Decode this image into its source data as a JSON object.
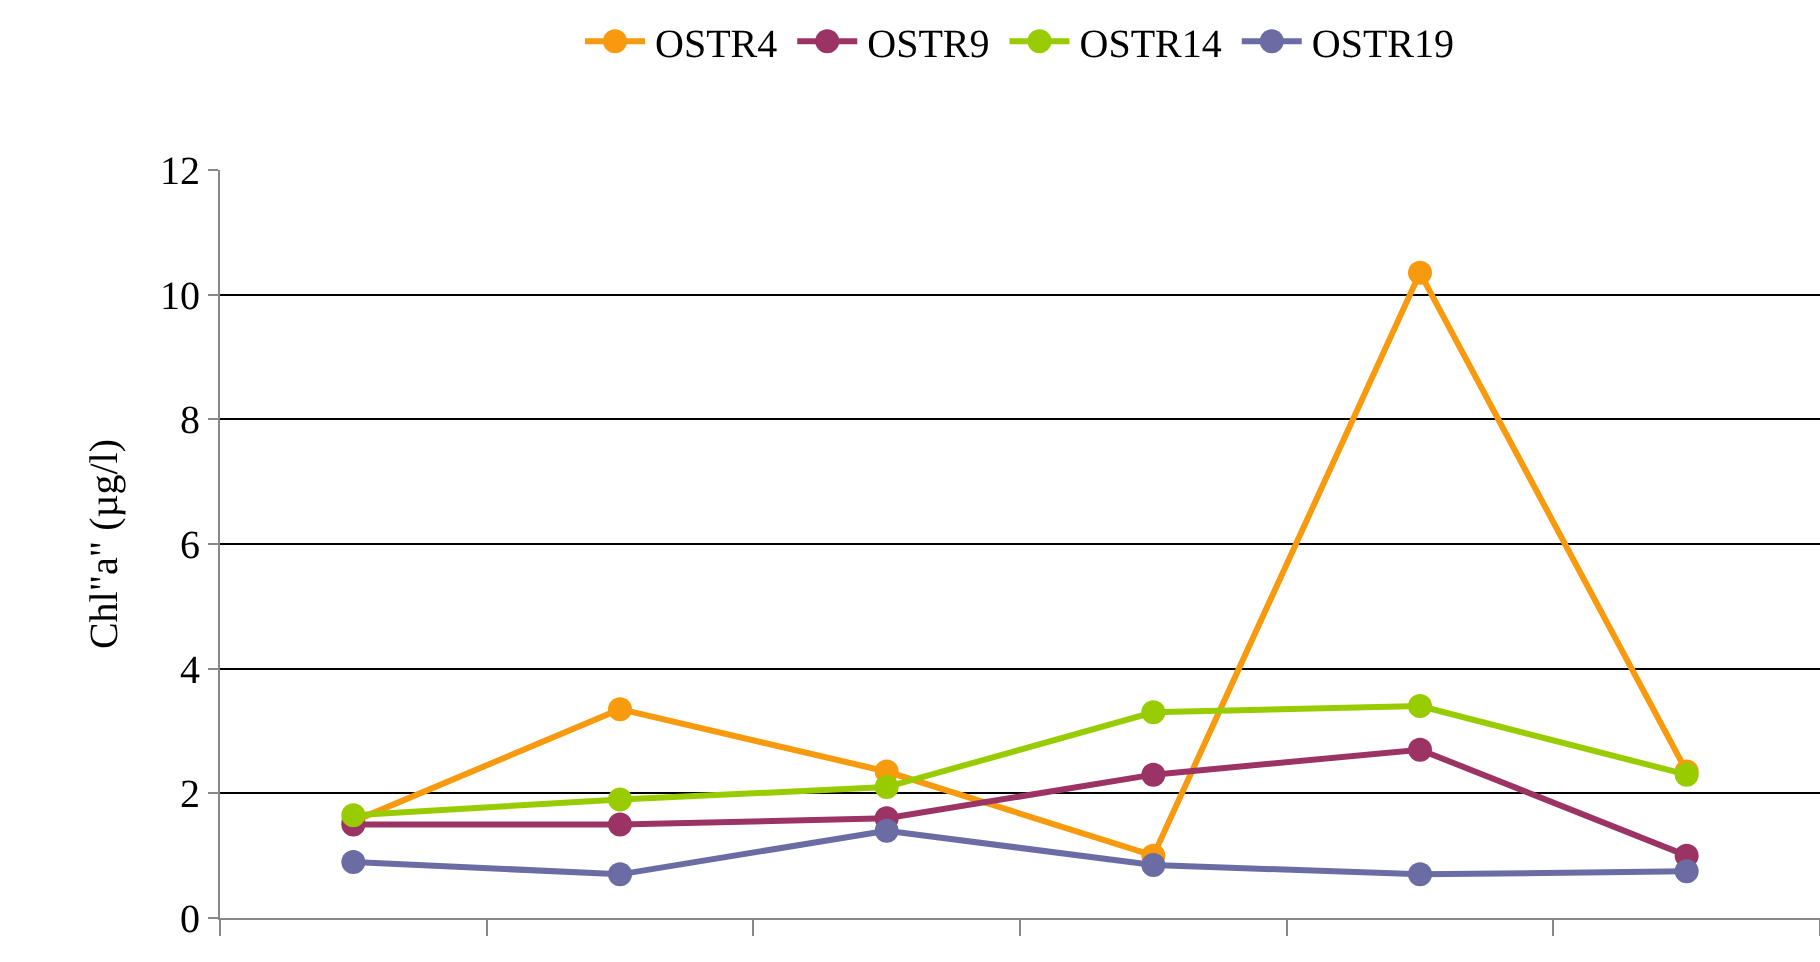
{
  "chart_data": {
    "type": "line",
    "ylabel": "Chl\"a\" (µg/l)",
    "categories": [
      null,
      null,
      null,
      null,
      null,
      null
    ],
    "series": [
      {
        "name": "OSTR4",
        "color": "#f79a0e",
        "values": [
          1.55,
          3.35,
          2.35,
          1.0,
          10.35,
          2.35
        ]
      },
      {
        "name": "OSTR9",
        "color": "#9b3465",
        "values": [
          1.5,
          1.5,
          1.6,
          2.3,
          2.7,
          1.0
        ]
      },
      {
        "name": "OSTR14",
        "color": "#99cc00",
        "values": [
          1.65,
          1.9,
          2.1,
          3.3,
          3.4,
          2.3
        ]
      },
      {
        "name": "OSTR19",
        "color": "#6b6ca3",
        "values": [
          0.9,
          0.7,
          1.4,
          0.85,
          0.7,
          0.75
        ]
      }
    ],
    "ylim": [
      0,
      12
    ],
    "yticks": [
      0,
      2,
      4,
      6,
      8,
      10,
      12
    ],
    "grid": "y",
    "legend": "top",
    "marker": "circle",
    "line_style": "solid"
  }
}
